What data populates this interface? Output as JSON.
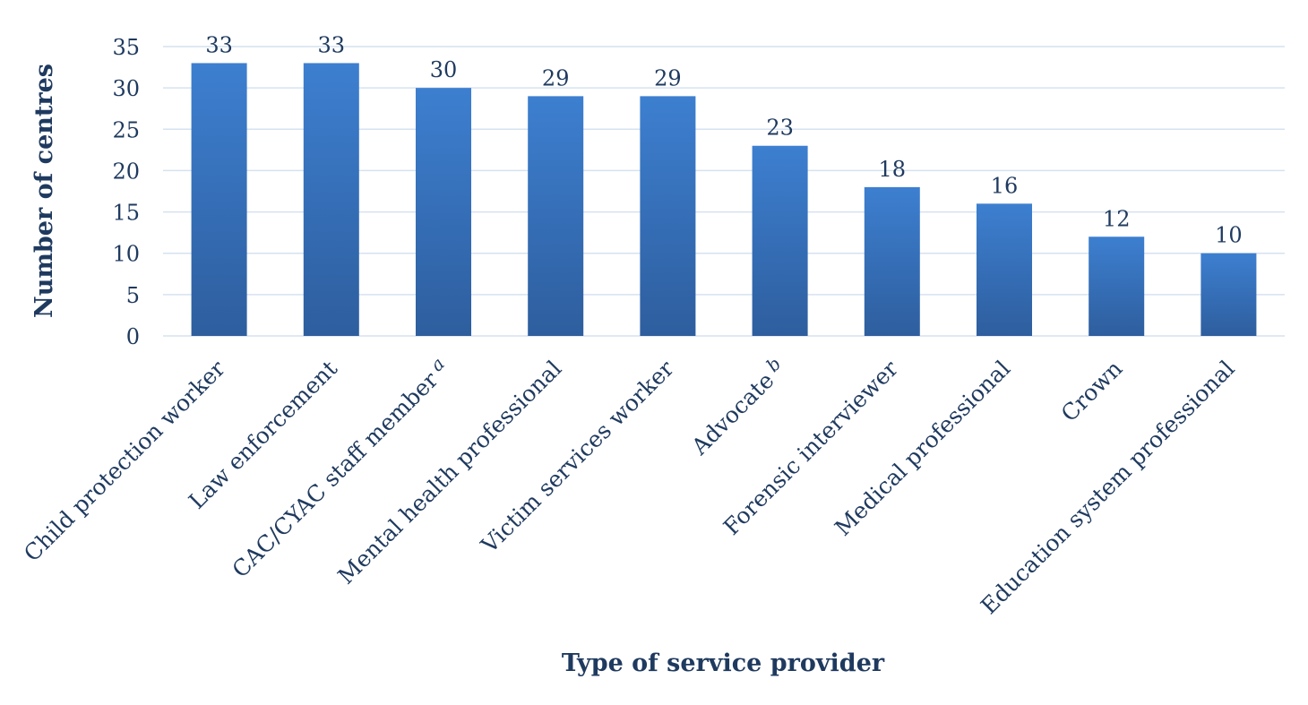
{
  "chart_data": {
    "type": "bar",
    "categories": [
      {
        "label": "Child protection worker",
        "sup": ""
      },
      {
        "label": "Law enforcement",
        "sup": ""
      },
      {
        "label": "CAC/CYAC staff member",
        "sup": "a"
      },
      {
        "label": "Mental health professional",
        "sup": ""
      },
      {
        "label": "Victim services worker",
        "sup": ""
      },
      {
        "label": "Advocate",
        "sup": "b"
      },
      {
        "label": "Forensic interviewer",
        "sup": ""
      },
      {
        "label": "Medical professional",
        "sup": ""
      },
      {
        "label": "Crown",
        "sup": ""
      },
      {
        "label": "Education system professional",
        "sup": ""
      }
    ],
    "values": [
      33,
      33,
      30,
      29,
      29,
      23,
      18,
      16,
      12,
      10
    ],
    "xlabel": "Type of service provider",
    "ylabel": "Number of centres",
    "ylim": [
      0,
      35
    ],
    "yticks": [
      0,
      5,
      10,
      15,
      20,
      25,
      30,
      35
    ],
    "grid": true,
    "legend": "none",
    "data_labels": true,
    "colors": {
      "bar_top": "#3d7fd0",
      "bar_bottom": "#2e5e9e",
      "text": "#1f3a5f",
      "grid": "#d6e2f0"
    }
  }
}
